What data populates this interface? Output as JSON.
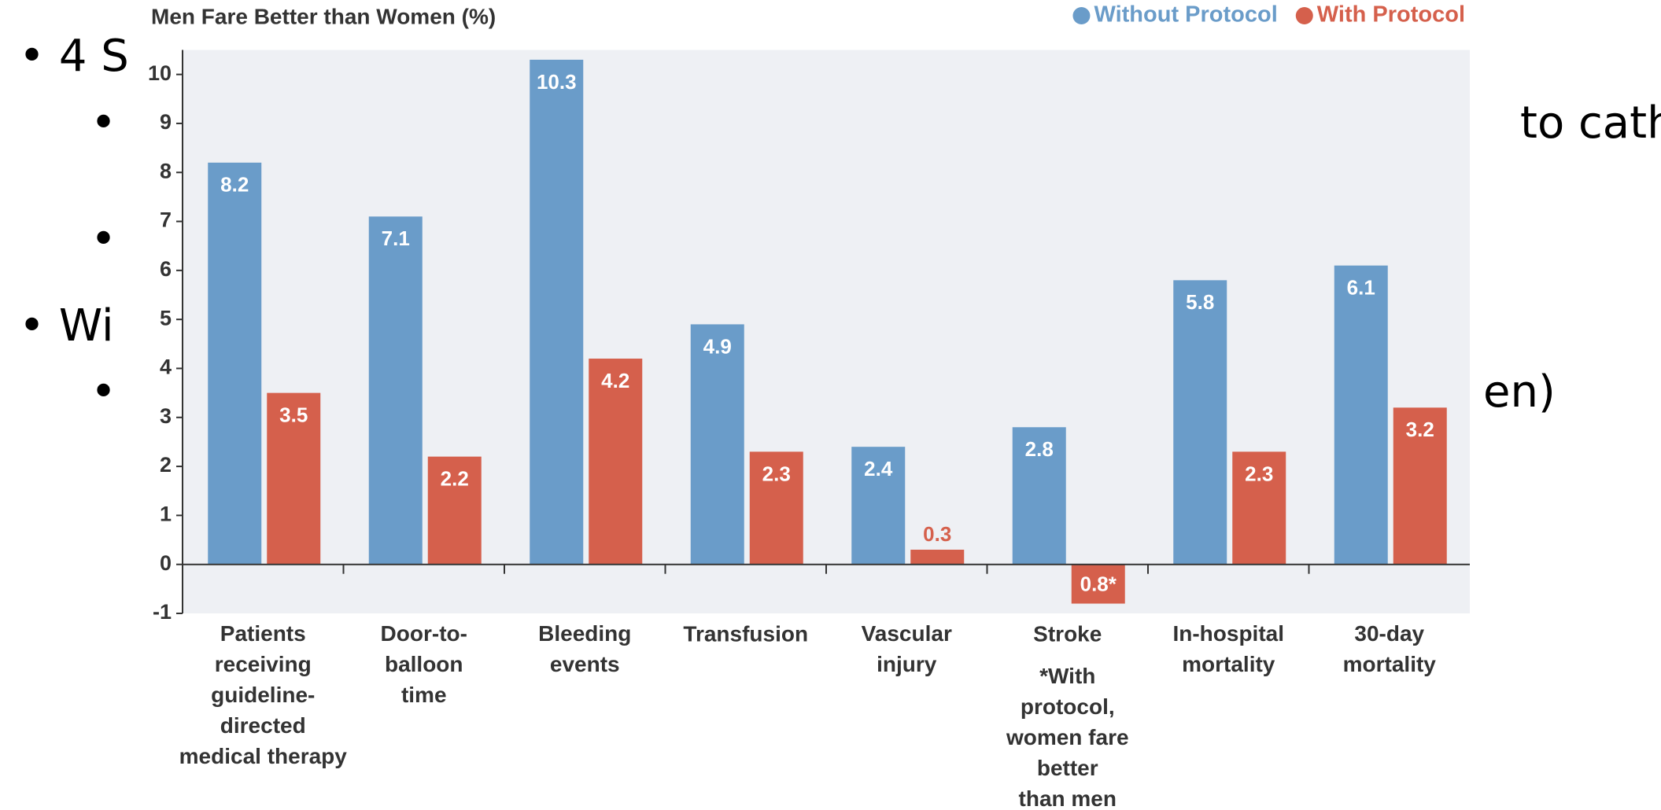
{
  "slide": [
    "• 4 S",
    "•",
    "to cath",
    "•",
    "• Wi",
    "•",
    "en)"
  ],
  "chart_data": {
    "type": "bar",
    "title": "Men Fare Better than Women (%)",
    "categories": [
      "Patients\nreceiving\nguideline-\ndirected\nmedical therapy",
      "Door-to-\nballoon\ntime",
      "Bleeding\nevents",
      "Transfusion",
      "Vascular\ninjury",
      "Stroke",
      "In-hospital\nmortality",
      "30-day\nmortality"
    ],
    "series": [
      {
        "name": "Without Protocol",
        "color": "#6a9cc9",
        "values": [
          8.2,
          7.1,
          10.3,
          4.9,
          2.4,
          2.8,
          5.8,
          6.1
        ]
      },
      {
        "name": "With Protocol",
        "color": "#d5604c",
        "values": [
          3.5,
          2.2,
          4.2,
          2.3,
          0.3,
          -0.8,
          2.3,
          3.2
        ],
        "value_labels": [
          "3.5",
          "2.2",
          "4.2",
          "2.3",
          "0.3",
          "0.8*",
          "2.3",
          "3.2"
        ]
      }
    ],
    "annotations": [
      "*With\nprotocol,\nwomen fare\nbetter\nthan men"
    ],
    "ylim": [
      -1,
      10.5
    ],
    "yticks": [
      -1,
      0,
      1,
      2,
      3,
      4,
      5,
      6,
      7,
      8,
      9,
      10
    ],
    "legend": "top-right"
  }
}
